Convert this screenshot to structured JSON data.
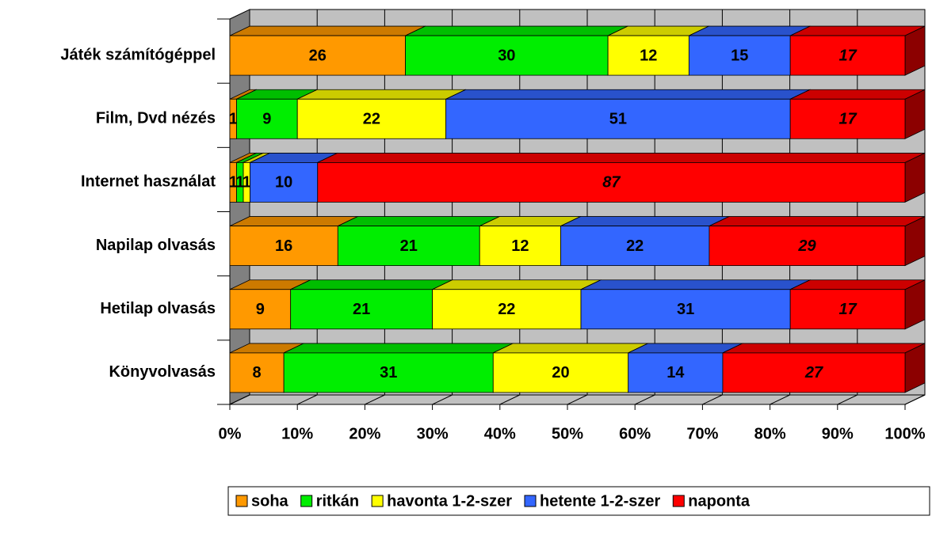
{
  "chart_data": {
    "type": "bar",
    "categories": [
      "Játék számítógéppel",
      "Film, Dvd nézés",
      "Internet használat",
      "Napilap olvasás",
      "Hetilap olvasás",
      "Könyvolvasás"
    ],
    "series": [
      {
        "name": "soha",
        "color": "#ff9900",
        "values": [
          26,
          1,
          1,
          16,
          9,
          8
        ]
      },
      {
        "name": "ritkán",
        "color": "#00ee00",
        "values": [
          30,
          9,
          1,
          21,
          21,
          31
        ]
      },
      {
        "name": "havonta 1-2-szer",
        "color": "#ffff00",
        "values": [
          12,
          22,
          1,
          12,
          22,
          20
        ]
      },
      {
        "name": "hetente 1-2-szer",
        "color": "#3366ff",
        "values": [
          15,
          51,
          10,
          22,
          31,
          14
        ]
      },
      {
        "name": "naponta",
        "color": "#ff0000",
        "values": [
          17,
          17,
          87,
          29,
          17,
          27
        ]
      }
    ],
    "xlim": [
      0,
      100
    ],
    "xticks": [
      {
        "value": 0,
        "label": "0%"
      },
      {
        "value": 10,
        "label": "10%"
      },
      {
        "value": 20,
        "label": "20%"
      },
      {
        "value": 30,
        "label": "30%"
      },
      {
        "value": 40,
        "label": "40%"
      },
      {
        "value": 50,
        "label": "50%"
      },
      {
        "value": 60,
        "label": "60%"
      },
      {
        "value": 70,
        "label": "70%"
      },
      {
        "value": 80,
        "label": "80%"
      },
      {
        "value": 90,
        "label": "90%"
      },
      {
        "value": 100,
        "label": "100%"
      }
    ],
    "grid": true,
    "legend": "bottom"
  }
}
